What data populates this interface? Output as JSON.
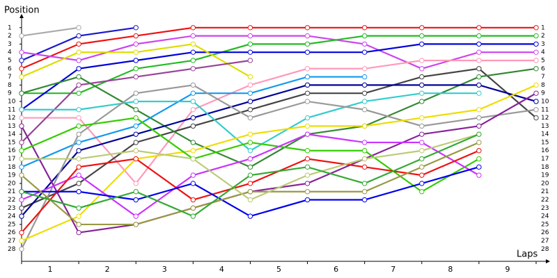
{
  "chart_data": {
    "type": "line",
    "y_label": "Position",
    "x_label": "Laps",
    "categories": [
      "1",
      "2",
      "3",
      "4",
      "5",
      "6",
      "7",
      "8",
      "9"
    ],
    "x": [
      0,
      1,
      2,
      3,
      4,
      5,
      6,
      7,
      8,
      9
    ],
    "xlim": [
      0,
      9
    ],
    "ylim": [
      29.5,
      0
    ],
    "yticks": [
      1,
      2,
      3,
      4,
      5,
      6,
      7,
      8,
      9,
      10,
      11,
      12,
      13,
      14,
      15,
      16,
      17,
      18,
      19,
      20,
      21,
      22,
      23,
      24,
      25,
      26,
      27,
      28
    ],
    "series": [
      {
        "color": "#aaaaaa",
        "values": [
          2,
          1,
          null,
          null,
          null,
          null,
          null,
          null,
          null,
          null
        ]
      },
      {
        "color": "#1a1acc",
        "values": [
          5,
          2,
          1,
          null,
          null,
          null,
          null,
          null,
          null,
          null
        ]
      },
      {
        "color": "#ee1111",
        "values": [
          6,
          3,
          2,
          1,
          1,
          1,
          1,
          1,
          1,
          1
        ]
      },
      {
        "color": "#cc44ee",
        "values": [
          4,
          5,
          3,
          2,
          2,
          2,
          3,
          6,
          4,
          4
        ]
      },
      {
        "color": "#22bb22",
        "values": [
          9,
          9,
          6,
          5,
          3,
          3,
          2,
          2,
          2,
          2
        ]
      },
      {
        "color": "#0000dd",
        "values": [
          11,
          6,
          5,
          4,
          4,
          4,
          4,
          3,
          3,
          3
        ]
      },
      {
        "color": "#dddd00",
        "values": [
          7,
          4,
          4,
          3,
          7,
          null,
          null,
          null,
          null,
          null
        ]
      },
      {
        "color": "#ff99bb",
        "values": [
          12,
          12,
          20,
          11,
          8,
          6,
          6,
          5,
          5,
          5
        ]
      },
      {
        "color": "#994499",
        "values": [
          15,
          8,
          7,
          6,
          5,
          null,
          null,
          null,
          null,
          null
        ]
      },
      {
        "color": "#444444",
        "values": [
          23,
          20,
          15,
          13,
          11,
          9,
          9,
          7,
          6,
          12
        ]
      },
      {
        "color": "#338833",
        "values": [
          9,
          7,
          11,
          15,
          18,
          14,
          13,
          10,
          7,
          6
        ]
      },
      {
        "color": "#000099",
        "values": [
          24,
          16,
          14,
          12,
          10,
          8,
          8,
          8,
          8,
          10
        ]
      },
      {
        "color": "#1199ee",
        "values": [
          18,
          15,
          13,
          9,
          9,
          7,
          7,
          null,
          null,
          null
        ]
      },
      {
        "color": "#33cccc",
        "values": [
          11,
          11,
          10,
          10,
          16,
          12,
          10,
          9,
          9,
          null
        ]
      },
      {
        "color": "#999999",
        "values": [
          28,
          14,
          9,
          8,
          12,
          10,
          11,
          13,
          12,
          11
        ]
      },
      {
        "color": "#eedd00",
        "values": [
          27,
          24,
          17,
          16,
          14,
          13,
          13,
          12,
          11,
          8
        ]
      },
      {
        "color": "#882299",
        "values": [
          13,
          26,
          25,
          23,
          21,
          20,
          17,
          14,
          13,
          9
        ]
      },
      {
        "color": "#33cc00",
        "values": [
          16,
          13,
          12,
          17,
          15,
          16,
          16,
          21,
          17,
          null
        ]
      },
      {
        "color": "#cc33ff",
        "values": [
          22,
          19,
          24,
          19,
          17,
          14,
          15,
          15,
          19,
          null
        ]
      },
      {
        "color": "#ee1111",
        "values": [
          26,
          18,
          17,
          22,
          20,
          17,
          18,
          19,
          16,
          null
        ]
      },
      {
        "color": "#0000ee",
        "values": [
          21,
          21,
          22,
          20,
          24,
          22,
          22,
          20,
          18,
          null
        ]
      },
      {
        "color": "#999944",
        "values": [
          19,
          25,
          25,
          23,
          21,
          21,
          21,
          18,
          15,
          null
        ]
      },
      {
        "color": "#bbcc77",
        "values": [
          17,
          17,
          16,
          17,
          22,
          19,
          17,
          16,
          14,
          null
        ]
      },
      {
        "color": "#33aa33",
        "values": [
          21,
          23,
          21,
          24,
          19,
          18,
          20,
          17,
          14,
          null
        ]
      }
    ]
  }
}
